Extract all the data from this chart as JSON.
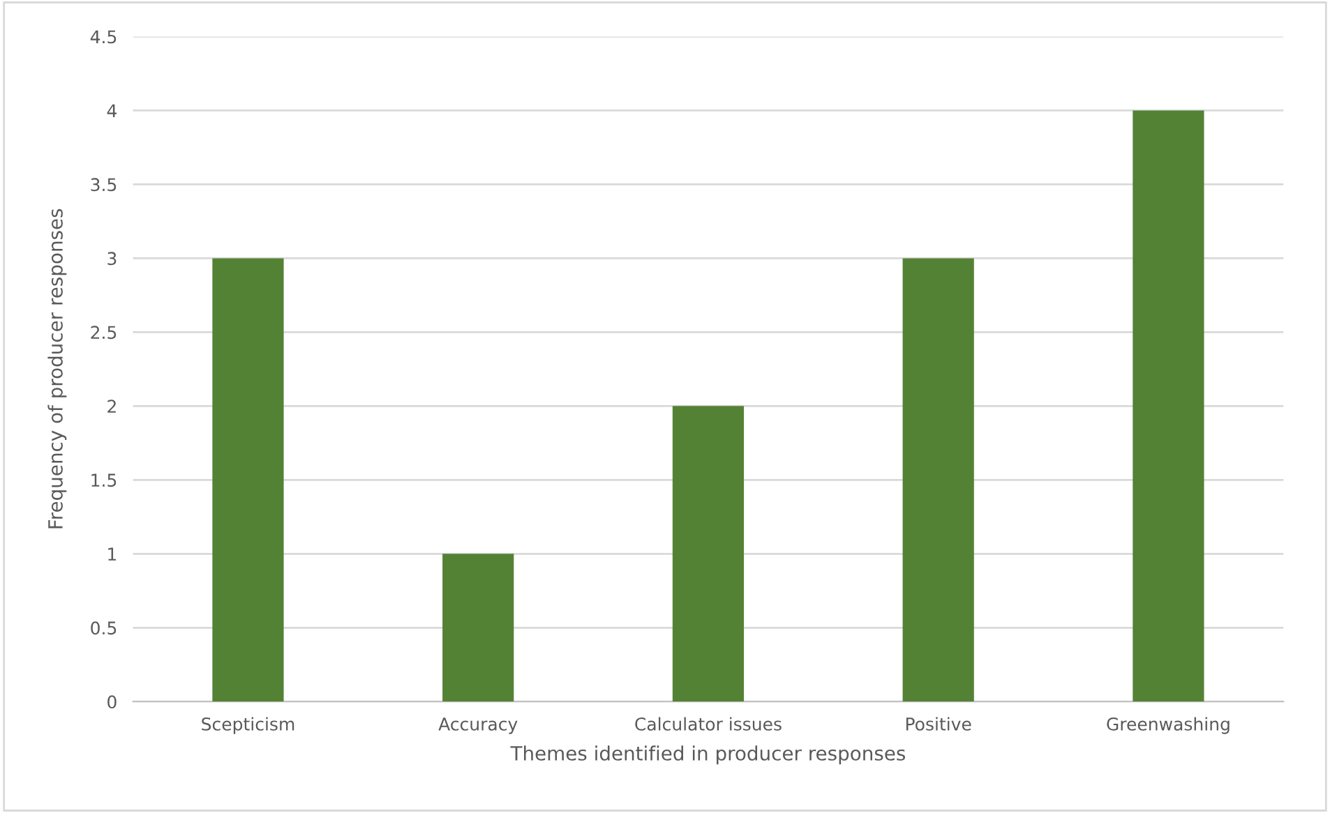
{
  "chart_data": {
    "type": "bar",
    "xlabel": "Themes identified in producer responses",
    "ylabel": "Frequency of producer responses",
    "categories": [
      "Scepticism",
      "Accuracy",
      "Calculator issues",
      "Positive",
      "Greenwashing"
    ],
    "values": [
      3,
      1,
      2,
      3,
      4
    ],
    "color": "#548235",
    "ylim": [
      0,
      4.5
    ],
    "yticks": [
      0,
      0.5,
      1,
      1.5,
      2,
      2.5,
      3,
      3.5,
      4,
      4.5
    ],
    "grid": "y"
  }
}
